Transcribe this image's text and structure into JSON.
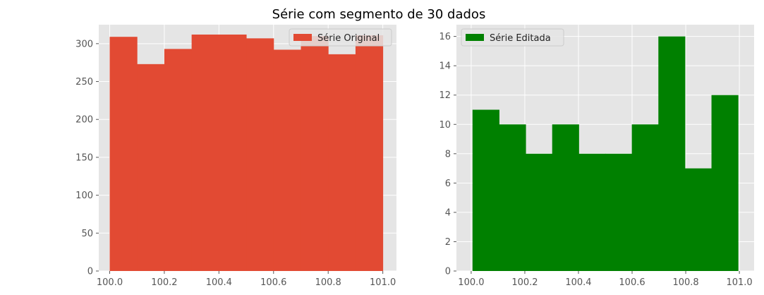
{
  "figure": {
    "title": "Série com segmento de 30 dados"
  },
  "chart_data": [
    {
      "type": "bar",
      "subtype": "histogram",
      "style": "ggplot",
      "grid": true,
      "legend_position": "top-right",
      "series": [
        {
          "name": "Série Original",
          "color": "#E24A33",
          "bin_edges": [
            100.0,
            100.1,
            100.2,
            100.3,
            100.4,
            100.5,
            100.6,
            100.7,
            100.8,
            100.9,
            101.0
          ],
          "values": [
            309,
            273,
            293,
            312,
            312,
            307,
            292,
            310,
            286,
            311
          ]
        }
      ],
      "xlim": [
        99.96,
        101.05
      ],
      "ylim": [
        0,
        325
      ],
      "xticks": [
        100.0,
        100.2,
        100.4,
        100.6,
        100.8,
        101.0
      ],
      "xtick_labels": [
        "100.0",
        "100.2",
        "100.4",
        "100.6",
        "100.8",
        "101.0"
      ],
      "yticks": [
        0,
        50,
        100,
        150,
        200,
        250,
        300
      ],
      "ytick_labels": [
        "0",
        "50",
        "100",
        "150",
        "200",
        "250",
        "300"
      ]
    },
    {
      "type": "bar",
      "subtype": "histogram",
      "style": "ggplot",
      "grid": true,
      "legend_position": "top-left",
      "series": [
        {
          "name": "Série Editada",
          "color": "#008000",
          "bin_edges": [
            100.005,
            100.104,
            100.203,
            100.302,
            100.401,
            100.5,
            100.599,
            100.698,
            100.797,
            100.896,
            100.995
          ],
          "values": [
            11,
            10,
            8,
            10,
            8,
            8,
            10,
            16,
            7,
            12
          ]
        }
      ],
      "xlim": [
        99.945,
        101.055
      ],
      "ylim": [
        0,
        16.8
      ],
      "xticks": [
        100.0,
        100.2,
        100.4,
        100.6,
        100.8,
        101.0
      ],
      "xtick_labels": [
        "100.0",
        "100.2",
        "100.4",
        "100.6",
        "100.8",
        "101.0"
      ],
      "yticks": [
        0,
        2,
        4,
        6,
        8,
        10,
        12,
        14,
        16
      ],
      "ytick_labels": [
        "0",
        "2",
        "4",
        "6",
        "8",
        "10",
        "12",
        "14",
        "16"
      ]
    }
  ]
}
